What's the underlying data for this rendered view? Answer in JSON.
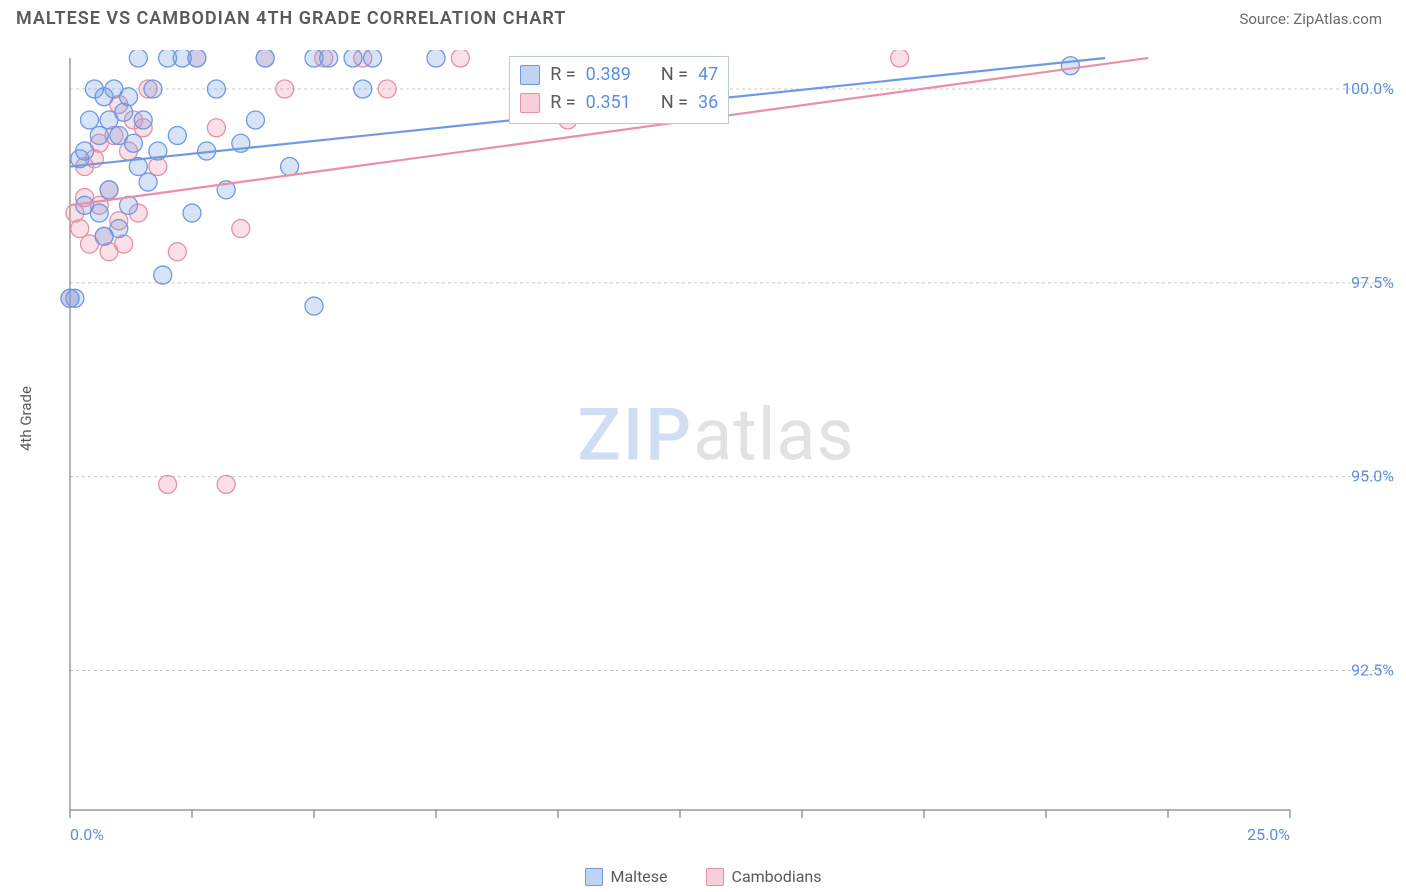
{
  "title": "MALTESE VS CAMBODIAN 4TH GRADE CORRELATION CHART",
  "source_label": "Source: ZipAtlas.com",
  "ylabel": "4th Grade",
  "watermark": {
    "part1": "ZIP",
    "part2": "atlas"
  },
  "chart": {
    "type": "scatter",
    "background_color": "#ffffff",
    "grid_color": "#c8c8c8",
    "axis_color": "#6a6a6a",
    "tick_label_color": "#5b8fe0",
    "xlim": [
      0,
      25
    ],
    "ylim": [
      90.7,
      100.4
    ],
    "x_ticks": [
      0,
      2.5,
      5,
      7.5,
      10,
      12.5,
      15,
      17.5,
      20,
      22.5,
      25
    ],
    "x_tick_labels_shown": {
      "0": "0.0%",
      "25": "25.0%"
    },
    "y_ticks": [
      92.5,
      95.0,
      97.5,
      100.0
    ],
    "y_tick_labels": [
      "92.5%",
      "95.0%",
      "97.5%",
      "100.0%"
    ],
    "marker_radius": 9,
    "marker_stroke_width": 1.3,
    "marker_fill_opacity": 0.28,
    "trend_line_width": 2.2,
    "series": [
      {
        "name": "Maltese",
        "color": "#6f99e3",
        "fill": "#6f99e3",
        "trend_start": [
          0,
          99.0
        ],
        "trend_end": [
          25,
          100.65
        ],
        "R": 0.389,
        "N": 47,
        "points": [
          [
            0.0,
            97.3
          ],
          [
            0.1,
            97.3
          ],
          [
            0.2,
            99.1
          ],
          [
            0.3,
            98.5
          ],
          [
            0.3,
            99.2
          ],
          [
            0.4,
            99.6
          ],
          [
            0.5,
            100.0
          ],
          [
            0.6,
            98.4
          ],
          [
            0.6,
            99.4
          ],
          [
            0.7,
            99.9
          ],
          [
            0.7,
            98.1
          ],
          [
            0.8,
            99.6
          ],
          [
            0.8,
            98.7
          ],
          [
            0.9,
            100.0
          ],
          [
            1.0,
            99.4
          ],
          [
            1.0,
            98.2
          ],
          [
            1.1,
            99.7
          ],
          [
            1.2,
            99.9
          ],
          [
            1.2,
            98.5
          ],
          [
            1.3,
            99.3
          ],
          [
            1.4,
            99.0
          ],
          [
            1.4,
            100.4
          ],
          [
            1.5,
            99.6
          ],
          [
            1.6,
            98.8
          ],
          [
            1.7,
            100.0
          ],
          [
            1.8,
            99.2
          ],
          [
            1.9,
            97.6
          ],
          [
            2.0,
            100.4
          ],
          [
            2.2,
            99.4
          ],
          [
            2.3,
            100.4
          ],
          [
            2.5,
            98.4
          ],
          [
            2.6,
            100.4
          ],
          [
            2.8,
            99.2
          ],
          [
            3.0,
            100.0
          ],
          [
            3.2,
            98.7
          ],
          [
            3.5,
            99.3
          ],
          [
            3.8,
            99.6
          ],
          [
            4.0,
            100.4
          ],
          [
            4.5,
            99.0
          ],
          [
            5.0,
            100.4
          ],
          [
            5.0,
            97.2
          ],
          [
            5.3,
            100.4
          ],
          [
            5.8,
            100.4
          ],
          [
            6.0,
            100.0
          ],
          [
            6.2,
            100.4
          ],
          [
            7.5,
            100.4
          ],
          [
            20.5,
            100.3
          ]
        ]
      },
      {
        "name": "Cambodians",
        "color": "#e98fa6",
        "fill": "#e98fa6",
        "trend_start": [
          0,
          98.5
        ],
        "trend_end": [
          25,
          100.65
        ],
        "R": 0.351,
        "N": 36,
        "points": [
          [
            0.0,
            97.3
          ],
          [
            0.1,
            98.4
          ],
          [
            0.2,
            98.2
          ],
          [
            0.3,
            98.6
          ],
          [
            0.3,
            99.0
          ],
          [
            0.4,
            98.0
          ],
          [
            0.5,
            99.1
          ],
          [
            0.6,
            98.5
          ],
          [
            0.6,
            99.3
          ],
          [
            0.7,
            98.1
          ],
          [
            0.8,
            97.9
          ],
          [
            0.8,
            98.7
          ],
          [
            0.9,
            99.4
          ],
          [
            1.0,
            99.8
          ],
          [
            1.0,
            98.3
          ],
          [
            1.1,
            98.0
          ],
          [
            1.2,
            99.2
          ],
          [
            1.3,
            99.6
          ],
          [
            1.4,
            98.4
          ],
          [
            1.5,
            99.5
          ],
          [
            1.6,
            100.0
          ],
          [
            1.8,
            99.0
          ],
          [
            2.0,
            94.9
          ],
          [
            2.2,
            97.9
          ],
          [
            2.6,
            100.4
          ],
          [
            3.0,
            99.5
          ],
          [
            3.2,
            94.9
          ],
          [
            3.5,
            98.2
          ],
          [
            4.0,
            100.4
          ],
          [
            4.4,
            100.0
          ],
          [
            5.2,
            100.4
          ],
          [
            6.0,
            100.4
          ],
          [
            6.5,
            100.0
          ],
          [
            8.0,
            100.4
          ],
          [
            10.2,
            99.6
          ],
          [
            17.0,
            100.4
          ]
        ]
      }
    ]
  },
  "legend": {
    "items": [
      {
        "label": "Maltese",
        "color_fill": "#bfd3f3",
        "color_stroke": "#6f99e3"
      },
      {
        "label": "Cambodians",
        "color_fill": "#f7cfd9",
        "color_stroke": "#e98fa6"
      }
    ]
  },
  "corr_box": {
    "rows": [
      {
        "swatch_fill": "#bfd3f3",
        "swatch_stroke": "#6f99e3",
        "r": "0.389",
        "n": "47"
      },
      {
        "swatch_fill": "#f7cfd9",
        "swatch_stroke": "#e98fa6",
        "r": "0.351",
        "n": "36"
      }
    ],
    "r_label": "R =",
    "n_label": "N =",
    "value_color": "#5b8fe0"
  }
}
